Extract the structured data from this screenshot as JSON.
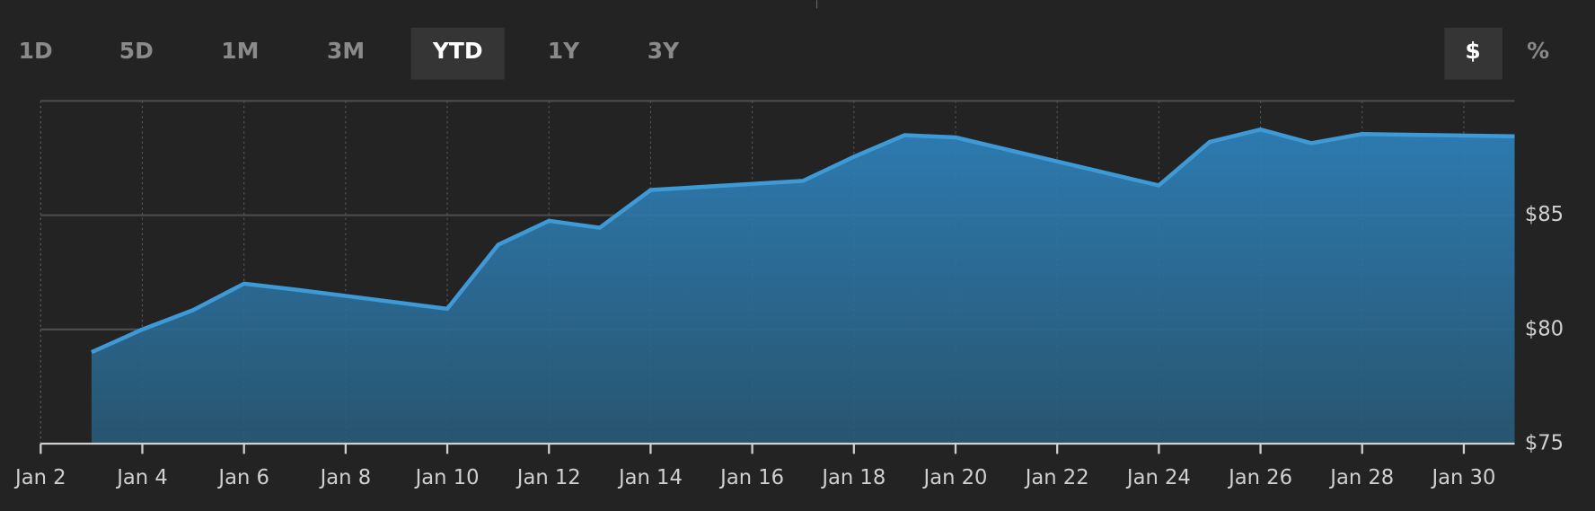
{
  "controls": {
    "ranges": [
      "1D",
      "5D",
      "1M",
      "3M",
      "YTD",
      "1Y",
      "3Y"
    ],
    "selected_range": "YTD",
    "units": [
      "$",
      "%"
    ],
    "selected_unit": "$"
  },
  "chart_data": {
    "type": "area",
    "x": [
      "Jan 3",
      "Jan 4",
      "Jan 5",
      "Jan 6",
      "Jan 7",
      "Jan 10",
      "Jan 11",
      "Jan 12",
      "Jan 13",
      "Jan 14",
      "Jan 17",
      "Jan 18",
      "Jan 19",
      "Jan 20",
      "Jan 24",
      "Jan 25",
      "Jan 26",
      "Jan 27",
      "Jan 28",
      "Jan 31"
    ],
    "values": [
      79.0,
      80.0,
      80.85,
      82.0,
      81.75,
      80.9,
      83.7,
      84.75,
      84.45,
      86.1,
      86.5,
      87.55,
      88.5,
      88.4,
      86.3,
      88.2,
      88.75,
      88.15,
      88.55,
      88.45
    ],
    "color": "#3d9ad6",
    "xlim": [
      "Jan 2",
      "Jan 31"
    ],
    "xticks": [
      "Jan 2",
      "Jan 4",
      "Jan 6",
      "Jan 8",
      "Jan 10",
      "Jan 12",
      "Jan 14",
      "Jan 16",
      "Jan 18",
      "Jan 20",
      "Jan 22",
      "Jan 24",
      "Jan 26",
      "Jan 28",
      "Jan 30"
    ],
    "ylim": [
      75,
      90
    ],
    "yticks": [
      {
        "value": 75,
        "label": "$75"
      },
      {
        "value": 80,
        "label": "$80"
      },
      {
        "value": 85,
        "label": "$85"
      }
    ],
    "grid": true
  }
}
